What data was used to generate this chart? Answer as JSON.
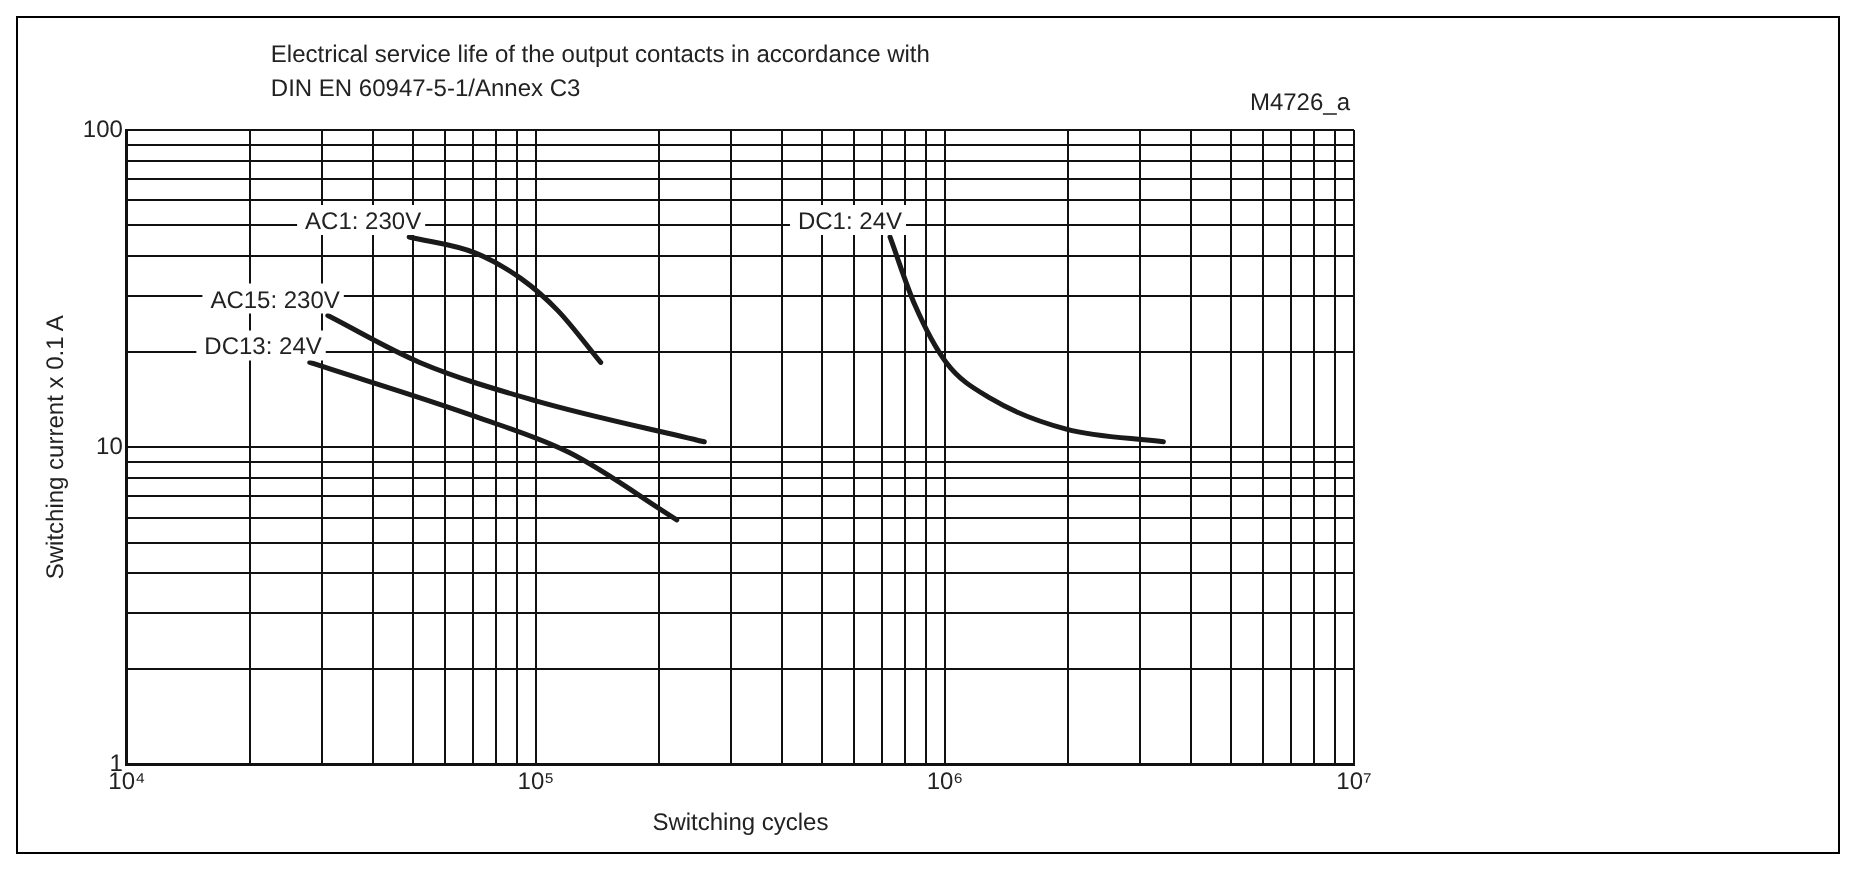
{
  "chart_data": {
    "type": "line",
    "title": "Electrical service life of the output contacts in accordance with",
    "subtitle": "DIN EN 60947-5-1/Annex C3",
    "annotations": [
      "M4726_a"
    ],
    "xlabel": "Switching cycles",
    "ylabel": "Switching current x 0.1 A",
    "log": "xy",
    "grid": true,
    "legend": false,
    "marker": "none",
    "line_style": "solid",
    "xlim": [
      10000,
      10000000
    ],
    "ylim": [
      1,
      100
    ],
    "xticks": [
      {
        "value": 10000,
        "label": "10⁴"
      },
      {
        "value": 20000,
        "label": null
      },
      {
        "value": 30000,
        "label": null
      },
      {
        "value": 40000,
        "label": null
      },
      {
        "value": 50000,
        "label": null
      },
      {
        "value": 60000,
        "label": null
      },
      {
        "value": 70000,
        "label": null
      },
      {
        "value": 80000,
        "label": null
      },
      {
        "value": 90000,
        "label": null
      },
      {
        "value": 100000,
        "label": "10⁵"
      },
      {
        "value": 200000,
        "label": null
      },
      {
        "value": 300000,
        "label": null
      },
      {
        "value": 400000,
        "label": null
      },
      {
        "value": 500000,
        "label": null
      },
      {
        "value": 600000,
        "label": null
      },
      {
        "value": 700000,
        "label": null
      },
      {
        "value": 800000,
        "label": null
      },
      {
        "value": 900000,
        "label": null
      },
      {
        "value": 1000000,
        "label": "10⁶"
      },
      {
        "value": 2000000,
        "label": null
      },
      {
        "value": 3000000,
        "label": null
      },
      {
        "value": 4000000,
        "label": null
      },
      {
        "value": 5000000,
        "label": null
      },
      {
        "value": 6000000,
        "label": null
      },
      {
        "value": 7000000,
        "label": null
      },
      {
        "value": 8000000,
        "label": null
      },
      {
        "value": 9000000,
        "label": null
      },
      {
        "value": 10000000,
        "label": "10⁷"
      }
    ],
    "yticks": [
      1,
      {
        "value": 2,
        "label": null
      },
      {
        "value": 3,
        "label": null
      },
      {
        "value": 4,
        "label": null
      },
      {
        "value": 5,
        "label": null
      },
      {
        "value": 6,
        "label": null
      },
      {
        "value": 7,
        "label": null
      },
      {
        "value": 8,
        "label": null
      },
      {
        "value": 9,
        "label": null
      },
      10,
      {
        "value": 20,
        "label": null
      },
      {
        "value": 30,
        "label": null
      },
      {
        "value": 40,
        "label": null
      },
      {
        "value": 50,
        "label": null
      },
      {
        "value": 60,
        "label": null
      },
      {
        "value": 70,
        "label": null
      },
      {
        "value": 80,
        "label": null
      },
      {
        "value": 90,
        "label": null
      },
      100
    ],
    "series": [
      {
        "name": "AC1: 230V",
        "color": "#1a1a1a",
        "x": [
          49000,
          71000,
          92000,
          113000,
          144000
        ],
        "values": [
          46,
          41,
          34,
          27,
          18.5
        ]
      },
      {
        "name": "AC15: 230V",
        "color": "#1a1a1a",
        "x": [
          31000,
          52000,
          100000,
          258000
        ],
        "values": [
          26,
          18.5,
          14,
          10.4
        ]
      },
      {
        "name": "DC13: 24V",
        "color": "#1a1a1a",
        "x": [
          28000,
          71000,
          121000,
          221000
        ],
        "values": [
          18.5,
          12.5,
          9.6,
          5.9
        ]
      },
      {
        "name": "DC1: 24V",
        "color": "#1a1a1a",
        "x": [
          734000,
          845000,
          1007000,
          1300000,
          1980000,
          3420000
        ],
        "values": [
          46,
          28,
          18.5,
          14.2,
          11.4,
          10.4
        ]
      }
    ]
  }
}
